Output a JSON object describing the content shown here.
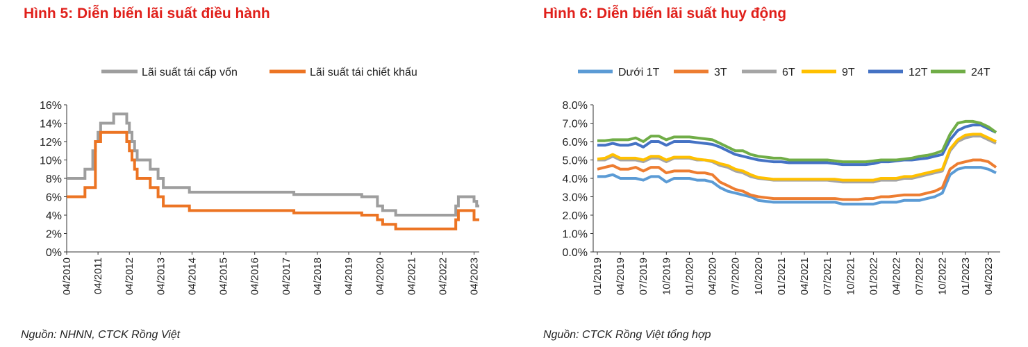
{
  "figures": [
    {
      "title": "Hình 5: Diễn biến lãi suất điều hành",
      "source": "Nguồn: NHNN, CTCK Rồng Việt"
    },
    {
      "title": "Hình 6: Diễn biến lãi suất huy động",
      "source": "Nguồn: CTCK Rồng Việt tổng hợp"
    }
  ],
  "chart_data": [
    {
      "type": "line",
      "title": "",
      "legend_position": "top",
      "x_start": "04/2010",
      "x_end": "06/2023",
      "xtick_labels": [
        "04/2010",
        "04/2011",
        "04/2012",
        "04/2013",
        "04/2014",
        "04/2015",
        "04/2016",
        "04/2017",
        "04/2018",
        "04/2019",
        "04/2020",
        "04/2021",
        "04/2022",
        "04/2023"
      ],
      "ytick_labels": [
        "0%",
        "2%",
        "4%",
        "6%",
        "8%",
        "10%",
        "12%",
        "14%",
        "16%"
      ],
      "ylim": [
        0,
        16
      ],
      "grid": false,
      "series": [
        {
          "name": "Lãi suất tái cấp vốn",
          "color": "#9e9e9e",
          "step_points": [
            [
              "2010-04",
              8
            ],
            [
              "2010-11",
              9
            ],
            [
              "2011-02",
              11
            ],
            [
              "2011-03",
              12
            ],
            [
              "2011-04",
              13
            ],
            [
              "2011-05",
              14
            ],
            [
              "2011-10",
              15
            ],
            [
              "2012-03",
              14
            ],
            [
              "2012-04",
              13
            ],
            [
              "2012-05",
              12
            ],
            [
              "2012-06",
              11
            ],
            [
              "2012-07",
              10
            ],
            [
              "2012-12",
              9
            ],
            [
              "2013-03",
              8
            ],
            [
              "2013-05",
              7
            ],
            [
              "2014-03",
              6.5
            ],
            [
              "2017-07",
              6.25
            ],
            [
              "2019-09",
              6
            ],
            [
              "2020-03",
              5
            ],
            [
              "2020-05",
              4.5
            ],
            [
              "2020-10",
              4
            ],
            [
              "2022-09",
              5
            ],
            [
              "2022-10",
              6
            ],
            [
              "2023-04",
              5.5
            ],
            [
              "2023-05",
              5
            ]
          ]
        },
        {
          "name": "Lãi suất tái chiết khấu",
          "color": "#ec7423",
          "step_points": [
            [
              "2010-04",
              6
            ],
            [
              "2010-11",
              7
            ],
            [
              "2011-03",
              12
            ],
            [
              "2011-05",
              13
            ],
            [
              "2012-03",
              12
            ],
            [
              "2012-04",
              11
            ],
            [
              "2012-05",
              10
            ],
            [
              "2012-06",
              9
            ],
            [
              "2012-07",
              8
            ],
            [
              "2012-12",
              7
            ],
            [
              "2013-03",
              6
            ],
            [
              "2013-05",
              5
            ],
            [
              "2014-03",
              4.5
            ],
            [
              "2017-07",
              4.25
            ],
            [
              "2019-09",
              4
            ],
            [
              "2020-03",
              3.5
            ],
            [
              "2020-05",
              3
            ],
            [
              "2020-10",
              2.5
            ],
            [
              "2022-09",
              3.5
            ],
            [
              "2022-10",
              4.5
            ],
            [
              "2023-04",
              3.5
            ]
          ]
        }
      ]
    },
    {
      "type": "line",
      "title": "",
      "legend_position": "top",
      "x_start": "01/2019",
      "x_end": "05/2023",
      "xtick_labels": [
        "01/2019",
        "04/2019",
        "07/2019",
        "10/2019",
        "01/2020",
        "04/2020",
        "07/2020",
        "10/2020",
        "01/2021",
        "04/2021",
        "07/2021",
        "10/2021",
        "01/2022",
        "04/2022",
        "07/2022",
        "10/2022",
        "01/2023",
        "04/2023"
      ],
      "ytick_labels": [
        "0.0%",
        "1.0%",
        "2.0%",
        "3.0%",
        "4.0%",
        "5.0%",
        "6.0%",
        "7.0%",
        "8.0%"
      ],
      "ylim": [
        0,
        8
      ],
      "grid": false,
      "series": [
        {
          "name": "Dưới 1T",
          "color": "#5b9bd5",
          "values": [
            4.1,
            4.1,
            4.2,
            4.0,
            4.0,
            4.0,
            3.9,
            4.1,
            4.1,
            3.8,
            4.0,
            4.0,
            4.0,
            3.9,
            3.9,
            3.8,
            3.5,
            3.3,
            3.2,
            3.1,
            3.0,
            2.8,
            2.75,
            2.7,
            2.7,
            2.7,
            2.7,
            2.7,
            2.7,
            2.7,
            2.7,
            2.7,
            2.6,
            2.6,
            2.6,
            2.6,
            2.6,
            2.7,
            2.7,
            2.7,
            2.8,
            2.8,
            2.8,
            2.9,
            3.0,
            3.2,
            4.2,
            4.5,
            4.6,
            4.6,
            4.6,
            4.5,
            4.3
          ]
        },
        {
          "name": "3T",
          "color": "#ed7d31",
          "values": [
            4.5,
            4.6,
            4.7,
            4.5,
            4.5,
            4.6,
            4.4,
            4.6,
            4.6,
            4.3,
            4.4,
            4.4,
            4.4,
            4.3,
            4.3,
            4.2,
            3.8,
            3.6,
            3.4,
            3.3,
            3.1,
            3.0,
            2.95,
            2.9,
            2.9,
            2.9,
            2.9,
            2.9,
            2.9,
            2.9,
            2.9,
            2.9,
            2.85,
            2.85,
            2.85,
            2.9,
            2.9,
            3.0,
            3.0,
            3.05,
            3.1,
            3.1,
            3.1,
            3.2,
            3.3,
            3.5,
            4.5,
            4.8,
            4.9,
            5.0,
            5.0,
            4.9,
            4.6
          ]
        },
        {
          "name": "6T",
          "color": "#a5a5a5",
          "values": [
            5.0,
            5.0,
            5.2,
            5.0,
            5.0,
            5.0,
            4.9,
            5.1,
            5.1,
            4.9,
            5.1,
            5.1,
            5.1,
            5.0,
            5.0,
            4.9,
            4.7,
            4.6,
            4.4,
            4.3,
            4.1,
            4.0,
            3.95,
            3.9,
            3.9,
            3.9,
            3.9,
            3.9,
            3.9,
            3.9,
            3.9,
            3.85,
            3.8,
            3.8,
            3.8,
            3.8,
            3.8,
            3.9,
            3.9,
            3.9,
            4.0,
            4.0,
            4.1,
            4.2,
            4.3,
            4.4,
            5.5,
            6.0,
            6.2,
            6.3,
            6.3,
            6.1,
            5.9
          ]
        },
        {
          "name": "9T",
          "color": "#ffc000",
          "values": [
            5.05,
            5.1,
            5.3,
            5.1,
            5.1,
            5.1,
            5.0,
            5.2,
            5.2,
            5.0,
            5.15,
            5.15,
            5.15,
            5.05,
            5.0,
            4.95,
            4.8,
            4.7,
            4.5,
            4.4,
            4.2,
            4.05,
            4.0,
            3.95,
            3.95,
            3.95,
            3.95,
            3.95,
            3.95,
            3.95,
            3.95,
            3.95,
            3.9,
            3.9,
            3.9,
            3.9,
            3.9,
            4.0,
            4.0,
            4.0,
            4.1,
            4.1,
            4.2,
            4.3,
            4.4,
            4.5,
            5.6,
            6.1,
            6.35,
            6.4,
            6.4,
            6.2,
            6.0
          ]
        },
        {
          "name": "12T",
          "color": "#4472c4",
          "values": [
            5.8,
            5.8,
            5.9,
            5.8,
            5.8,
            5.9,
            5.7,
            6.0,
            6.0,
            5.8,
            6.0,
            6.0,
            6.0,
            5.95,
            5.9,
            5.85,
            5.7,
            5.5,
            5.3,
            5.2,
            5.1,
            5.0,
            4.95,
            4.9,
            4.9,
            4.85,
            4.85,
            4.85,
            4.85,
            4.85,
            4.85,
            4.8,
            4.75,
            4.75,
            4.75,
            4.75,
            4.8,
            4.9,
            4.9,
            4.95,
            5.0,
            5.0,
            5.05,
            5.1,
            5.2,
            5.3,
            6.1,
            6.6,
            6.8,
            6.9,
            6.9,
            6.7,
            6.5
          ]
        },
        {
          "name": "24T",
          "color": "#70ad47",
          "values": [
            6.05,
            6.05,
            6.1,
            6.1,
            6.1,
            6.2,
            6.0,
            6.3,
            6.3,
            6.1,
            6.25,
            6.25,
            6.25,
            6.2,
            6.15,
            6.1,
            5.9,
            5.7,
            5.5,
            5.5,
            5.3,
            5.2,
            5.15,
            5.1,
            5.1,
            5.0,
            5.0,
            5.0,
            5.0,
            5.0,
            5.0,
            4.95,
            4.9,
            4.9,
            4.9,
            4.9,
            4.95,
            5.0,
            5.0,
            5.0,
            5.05,
            5.1,
            5.2,
            5.25,
            5.35,
            5.5,
            6.4,
            7.0,
            7.1,
            7.1,
            7.0,
            6.8,
            6.5
          ]
        }
      ]
    }
  ]
}
